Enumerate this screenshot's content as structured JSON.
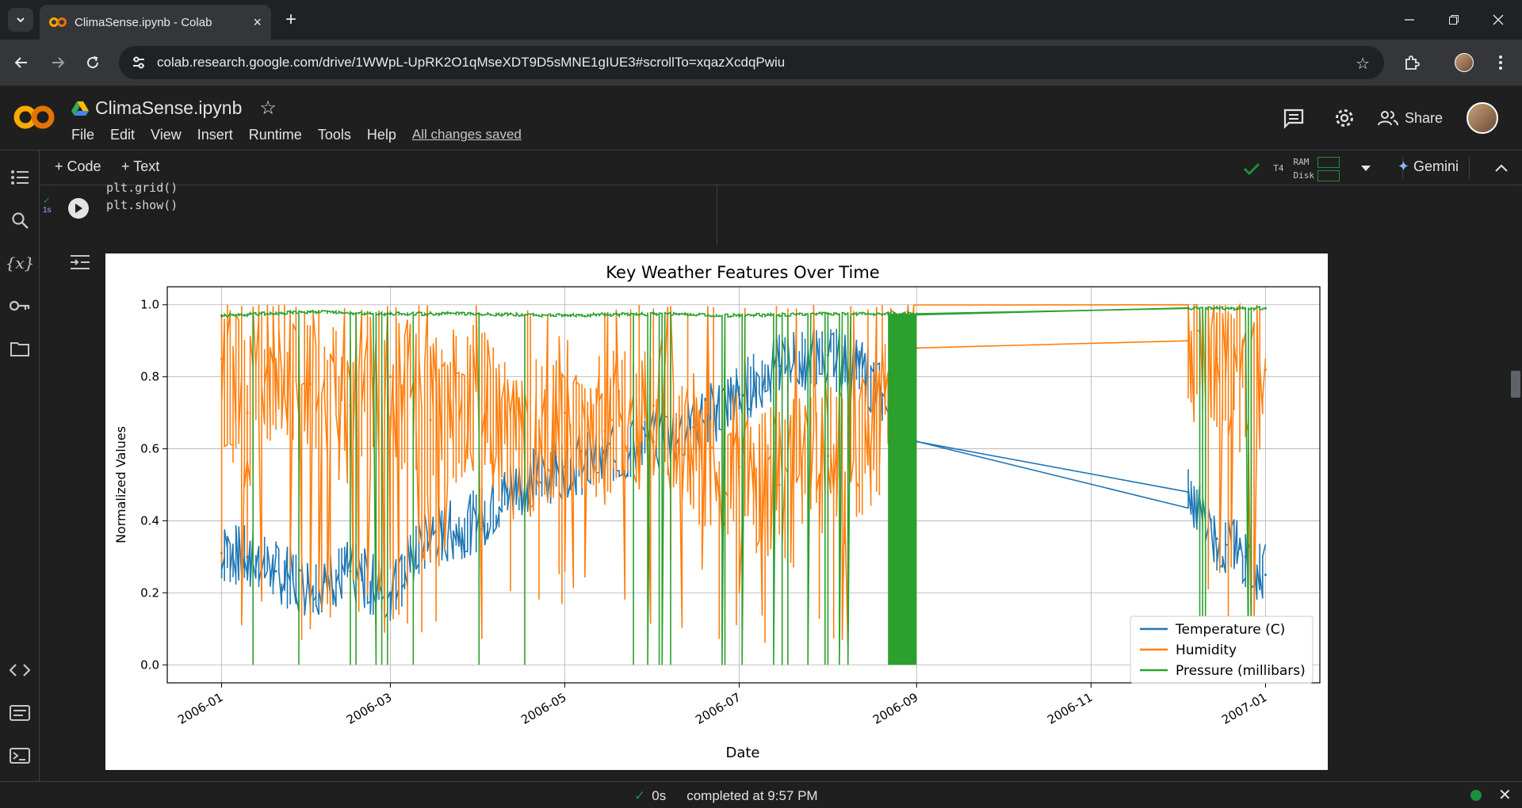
{
  "browser": {
    "tab_title": "ClimaSense.ipynb - Colab",
    "url": "colab.research.google.com/drive/1WWpL-UpRK2O1qMseXDT9D5sMNE1gIUE3#scrollTo=xqazXcdqPwiu",
    "new_tab": "+",
    "tab_close": "×"
  },
  "colab": {
    "notebook_title": "ClimaSense.ipynb",
    "menu": [
      "File",
      "Edit",
      "View",
      "Insert",
      "Runtime",
      "Tools",
      "Help"
    ],
    "save_status": "All changes saved",
    "share_label": "Share",
    "toolbar": {
      "add_code": "+ Code",
      "add_text": "+ Text",
      "runtime_type": "T4",
      "ram_label": "RAM",
      "disk_label": "Disk",
      "gemini_label": "Gemini"
    },
    "cell": {
      "code_lines": [
        "plt.grid()",
        "plt.show()"
      ],
      "exec_time": "1s"
    },
    "statusbar": {
      "duration": "0s",
      "message": "completed at 9:57 PM"
    }
  },
  "colors": {
    "temperature": "#1f77b4",
    "humidity": "#ff7f0e",
    "pressure": "#2ca02c"
  },
  "chart_data": {
    "type": "line",
    "title": "Key Weather Features Over Time",
    "xlabel": "Date",
    "ylabel": "Normalized Values",
    "x_ticks": [
      "2006-01",
      "2006-03",
      "2006-05",
      "2006-07",
      "2006-09",
      "2006-11",
      "2007-01"
    ],
    "y_ticks": [
      "0.0",
      "0.2",
      "0.4",
      "0.6",
      "0.8",
      "1.0"
    ],
    "ylim": [
      -0.05,
      1.05
    ],
    "xlim": [
      "2005-12-13",
      "2007-01-20"
    ],
    "grid": true,
    "legend_position": "lower right",
    "series": [
      {
        "name": "Temperature (C)",
        "x": [
          "2006-01-01",
          "2006-01-10",
          "2006-01-20",
          "2006-02-01",
          "2006-02-15",
          "2006-03-01",
          "2006-03-15",
          "2006-04-01",
          "2006-04-15",
          "2006-05-01",
          "2006-05-15",
          "2006-06-01",
          "2006-06-15",
          "2006-07-01",
          "2006-07-15",
          "2006-08-01",
          "2006-08-15",
          "2006-09-01",
          "2006-12-05",
          "2006-12-15",
          "2006-12-25",
          "2007-01-01"
        ],
        "values": [
          0.31,
          0.3,
          0.26,
          0.22,
          0.26,
          0.2,
          0.35,
          0.4,
          0.5,
          0.55,
          0.57,
          0.62,
          0.66,
          0.75,
          0.83,
          0.86,
          0.8,
          0.62,
          0.48,
          0.35,
          0.3,
          0.25
        ]
      },
      {
        "name": "Humidity",
        "x": [
          "2006-01-01",
          "2006-01-10",
          "2006-01-20",
          "2006-02-01",
          "2006-02-15",
          "2006-03-01",
          "2006-03-15",
          "2006-04-01",
          "2006-04-15",
          "2006-05-01",
          "2006-05-15",
          "2006-06-01",
          "2006-06-15",
          "2006-07-01",
          "2006-07-15",
          "2006-08-01",
          "2006-08-15",
          "2006-09-01",
          "2006-12-05",
          "2006-12-15",
          "2006-12-25",
          "2007-01-01"
        ],
        "values": [
          0.85,
          0.7,
          0.82,
          0.78,
          0.72,
          0.8,
          0.68,
          0.74,
          0.6,
          0.7,
          0.65,
          0.72,
          0.6,
          0.55,
          0.5,
          0.58,
          0.62,
          0.88,
          0.9,
          0.85,
          0.8,
          0.82
        ]
      },
      {
        "name": "Pressure (millibars)",
        "x": [
          "2006-01-01",
          "2006-02-01",
          "2006-03-01",
          "2006-04-01",
          "2006-05-01",
          "2006-06-01",
          "2006-07-01",
          "2006-08-01",
          "2006-09-01",
          "2006-12-05",
          "2007-01-01"
        ],
        "values": [
          0.97,
          0.98,
          0.975,
          0.975,
          0.97,
          0.975,
          0.97,
          0.975,
          0.975,
          0.99,
          0.99
        ]
      }
    ]
  }
}
